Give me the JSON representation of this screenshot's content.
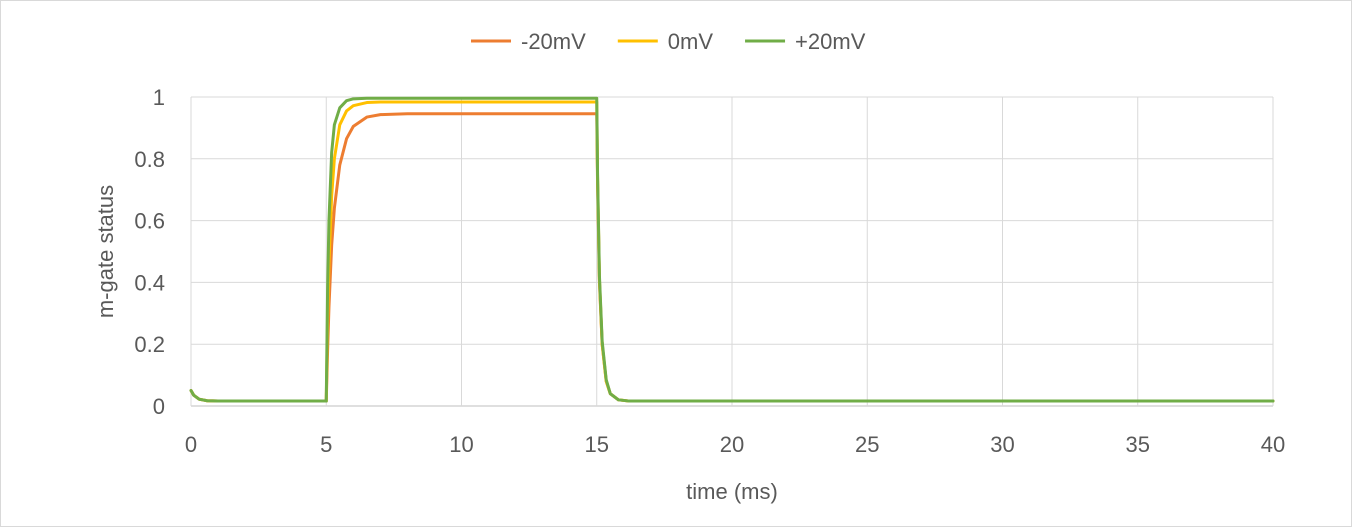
{
  "chart_data": {
    "type": "line",
    "title": "",
    "xlabel": "time (ms)",
    "ylabel": "m-gate status",
    "xlim": [
      0,
      40
    ],
    "ylim": [
      0,
      1
    ],
    "xticks": [
      "0",
      "5",
      "10",
      "15",
      "20",
      "25",
      "30",
      "35",
      "40"
    ],
    "yticks": [
      "0",
      "0.2",
      "0.4",
      "0.6",
      "0.8",
      "1"
    ],
    "grid": true,
    "legend_position": "top",
    "series": [
      {
        "name": "-20mV",
        "color": "#ED7D31",
        "points": [
          [
            0,
            0.05
          ],
          [
            0.1,
            0.035
          ],
          [
            0.3,
            0.022
          ],
          [
            0.6,
            0.017
          ],
          [
            1,
            0.016
          ],
          [
            5,
            0.016
          ],
          [
            5.05,
            0.18
          ],
          [
            5.1,
            0.32
          ],
          [
            5.2,
            0.52
          ],
          [
            5.3,
            0.64
          ],
          [
            5.5,
            0.78
          ],
          [
            5.75,
            0.865
          ],
          [
            6,
            0.905
          ],
          [
            6.5,
            0.935
          ],
          [
            7,
            0.943
          ],
          [
            8,
            0.946
          ],
          [
            15,
            0.946
          ],
          [
            15.03,
            0.72
          ],
          [
            15.1,
            0.4
          ],
          [
            15.2,
            0.2
          ],
          [
            15.35,
            0.08
          ],
          [
            15.5,
            0.04
          ],
          [
            15.8,
            0.02
          ],
          [
            16.2,
            0.016
          ],
          [
            40,
            0.016
          ]
        ]
      },
      {
        "name": "0mV",
        "color": "#FFC000",
        "points": [
          [
            0,
            0.05
          ],
          [
            0.1,
            0.035
          ],
          [
            0.3,
            0.022
          ],
          [
            0.6,
            0.017
          ],
          [
            1,
            0.016
          ],
          [
            5,
            0.016
          ],
          [
            5.05,
            0.28
          ],
          [
            5.1,
            0.46
          ],
          [
            5.2,
            0.68
          ],
          [
            5.3,
            0.8
          ],
          [
            5.5,
            0.91
          ],
          [
            5.75,
            0.955
          ],
          [
            6,
            0.972
          ],
          [
            6.5,
            0.982
          ],
          [
            7,
            0.984
          ],
          [
            15,
            0.984
          ],
          [
            15.03,
            0.74
          ],
          [
            15.1,
            0.41
          ],
          [
            15.2,
            0.2
          ],
          [
            15.35,
            0.08
          ],
          [
            15.5,
            0.04
          ],
          [
            15.8,
            0.02
          ],
          [
            16.2,
            0.016
          ],
          [
            40,
            0.016
          ]
        ]
      },
      {
        "name": "+20mV",
        "color": "#70AD47",
        "points": [
          [
            0,
            0.05
          ],
          [
            0.1,
            0.035
          ],
          [
            0.3,
            0.022
          ],
          [
            0.6,
            0.017
          ],
          [
            1,
            0.016
          ],
          [
            5,
            0.016
          ],
          [
            5.05,
            0.38
          ],
          [
            5.1,
            0.6
          ],
          [
            5.2,
            0.82
          ],
          [
            5.3,
            0.91
          ],
          [
            5.5,
            0.965
          ],
          [
            5.75,
            0.988
          ],
          [
            6,
            0.994
          ],
          [
            6.5,
            0.996
          ],
          [
            15,
            0.996
          ],
          [
            15.03,
            0.75
          ],
          [
            15.1,
            0.42
          ],
          [
            15.2,
            0.21
          ],
          [
            15.35,
            0.085
          ],
          [
            15.5,
            0.04
          ],
          [
            15.8,
            0.02
          ],
          [
            16.2,
            0.016
          ],
          [
            40,
            0.016
          ]
        ]
      }
    ]
  }
}
